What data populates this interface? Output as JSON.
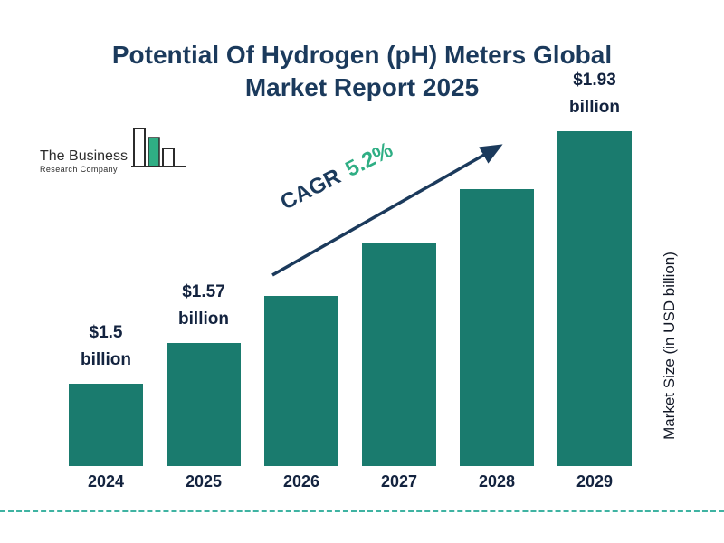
{
  "title": {
    "line1": "Potential Of Hydrogen (pH) Meters Global",
    "line2": "Market Report 2025"
  },
  "logo": {
    "name_line1": "The Business",
    "name_line2": "Research Company"
  },
  "cagr": {
    "label": "CAGR",
    "value": "5.2%"
  },
  "axis": {
    "ylabel": "Market Size (in USD billion)"
  },
  "colors": {
    "bar": "#1a7b6e",
    "title_navy": "#1b3a5c",
    "green": "#2fae84",
    "dashed_line": "#3fb3a2",
    "label_dark": "#13233f"
  },
  "chart_data": {
    "type": "bar",
    "title": "Potential Of Hydrogen (pH) Meters Global Market Report 2025",
    "categories": [
      "2024",
      "2025",
      "2026",
      "2027",
      "2028",
      "2029"
    ],
    "values": [
      1.5,
      1.57,
      1.65,
      1.74,
      1.83,
      1.93
    ],
    "unit": "USD billion",
    "xlabel": "",
    "ylabel": "Market Size (in USD billion)",
    "grid": false,
    "legend": false,
    "cagr_percent": 5.2,
    "value_labels": [
      {
        "index": 0,
        "amount": "$1.5",
        "unit": "billion"
      },
      {
        "index": 1,
        "amount": "$1.57",
        "unit": "billion"
      },
      {
        "index": 5,
        "amount": "$1.93",
        "unit": "billion"
      }
    ]
  }
}
